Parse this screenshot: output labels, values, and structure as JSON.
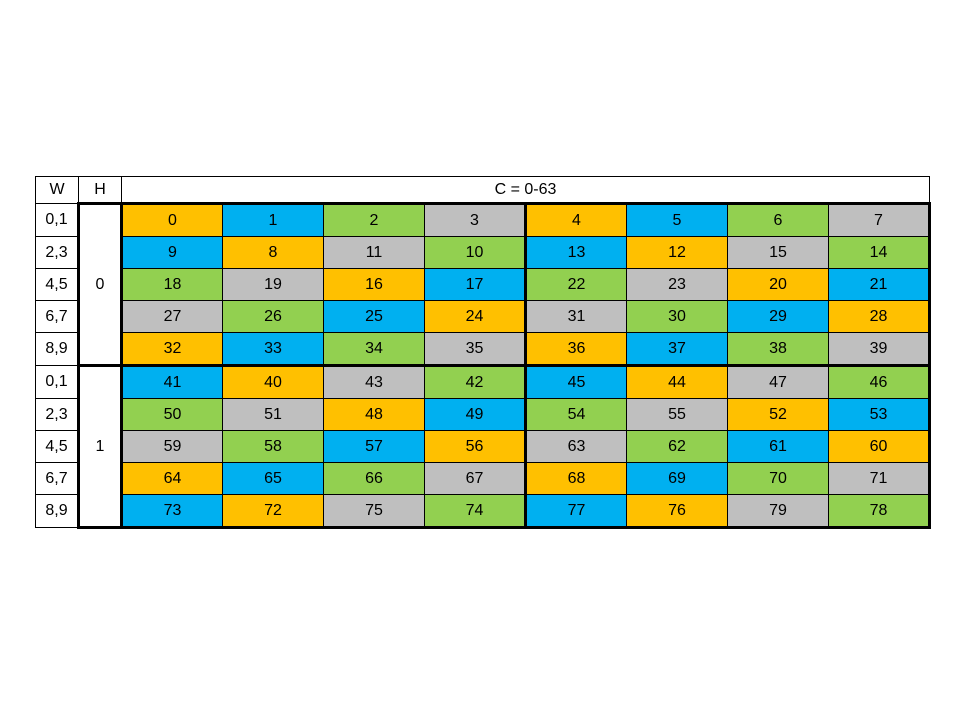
{
  "page": {
    "background": "#ffffff"
  },
  "table": {
    "headers": {
      "w": "W",
      "h": "H",
      "c": "C = 0-63"
    },
    "palette": {
      "orange": "#FFC000",
      "blue": "#00B0F0",
      "green": "#92D050",
      "gray": "#BFBFBF"
    },
    "border_color": "#000000",
    "blocks": [
      {
        "h_label": "0",
        "rows": [
          {
            "w_label": "0,1",
            "cells": [
              {
                "v": "0",
                "c": "orange"
              },
              {
                "v": "1",
                "c": "blue"
              },
              {
                "v": "2",
                "c": "green"
              },
              {
                "v": "3",
                "c": "gray"
              },
              {
                "v": "4",
                "c": "orange"
              },
              {
                "v": "5",
                "c": "blue"
              },
              {
                "v": "6",
                "c": "green"
              },
              {
                "v": "7",
                "c": "gray"
              }
            ]
          },
          {
            "w_label": "2,3",
            "cells": [
              {
                "v": "9",
                "c": "blue"
              },
              {
                "v": "8",
                "c": "orange"
              },
              {
                "v": "11",
                "c": "gray"
              },
              {
                "v": "10",
                "c": "green"
              },
              {
                "v": "13",
                "c": "blue"
              },
              {
                "v": "12",
                "c": "orange"
              },
              {
                "v": "15",
                "c": "gray"
              },
              {
                "v": "14",
                "c": "green"
              }
            ]
          },
          {
            "w_label": "4,5",
            "cells": [
              {
                "v": "18",
                "c": "green"
              },
              {
                "v": "19",
                "c": "gray"
              },
              {
                "v": "16",
                "c": "orange"
              },
              {
                "v": "17",
                "c": "blue"
              },
              {
                "v": "22",
                "c": "green"
              },
              {
                "v": "23",
                "c": "gray"
              },
              {
                "v": "20",
                "c": "orange"
              },
              {
                "v": "21",
                "c": "blue"
              }
            ]
          },
          {
            "w_label": "6,7",
            "cells": [
              {
                "v": "27",
                "c": "gray"
              },
              {
                "v": "26",
                "c": "green"
              },
              {
                "v": "25",
                "c": "blue"
              },
              {
                "v": "24",
                "c": "orange"
              },
              {
                "v": "31",
                "c": "gray"
              },
              {
                "v": "30",
                "c": "green"
              },
              {
                "v": "29",
                "c": "blue"
              },
              {
                "v": "28",
                "c": "orange"
              }
            ]
          },
          {
            "w_label": "8,9",
            "cells": [
              {
                "v": "32",
                "c": "orange"
              },
              {
                "v": "33",
                "c": "blue"
              },
              {
                "v": "34",
                "c": "green"
              },
              {
                "v": "35",
                "c": "gray"
              },
              {
                "v": "36",
                "c": "orange"
              },
              {
                "v": "37",
                "c": "blue"
              },
              {
                "v": "38",
                "c": "green"
              },
              {
                "v": "39",
                "c": "gray"
              }
            ]
          }
        ]
      },
      {
        "h_label": "1",
        "rows": [
          {
            "w_label": "0,1",
            "cells": [
              {
                "v": "41",
                "c": "blue"
              },
              {
                "v": "40",
                "c": "orange"
              },
              {
                "v": "43",
                "c": "gray"
              },
              {
                "v": "42",
                "c": "green"
              },
              {
                "v": "45",
                "c": "blue"
              },
              {
                "v": "44",
                "c": "orange"
              },
              {
                "v": "47",
                "c": "gray"
              },
              {
                "v": "46",
                "c": "green"
              }
            ]
          },
          {
            "w_label": "2,3",
            "cells": [
              {
                "v": "50",
                "c": "green"
              },
              {
                "v": "51",
                "c": "gray"
              },
              {
                "v": "48",
                "c": "orange"
              },
              {
                "v": "49",
                "c": "blue"
              },
              {
                "v": "54",
                "c": "green"
              },
              {
                "v": "55",
                "c": "gray"
              },
              {
                "v": "52",
                "c": "orange"
              },
              {
                "v": "53",
                "c": "blue"
              }
            ]
          },
          {
            "w_label": "4,5",
            "cells": [
              {
                "v": "59",
                "c": "gray"
              },
              {
                "v": "58",
                "c": "green"
              },
              {
                "v": "57",
                "c": "blue"
              },
              {
                "v": "56",
                "c": "orange"
              },
              {
                "v": "63",
                "c": "gray"
              },
              {
                "v": "62",
                "c": "green"
              },
              {
                "v": "61",
                "c": "blue"
              },
              {
                "v": "60",
                "c": "orange"
              }
            ]
          },
          {
            "w_label": "6,7",
            "cells": [
              {
                "v": "64",
                "c": "orange"
              },
              {
                "v": "65",
                "c": "blue"
              },
              {
                "v": "66",
                "c": "green"
              },
              {
                "v": "67",
                "c": "gray"
              },
              {
                "v": "68",
                "c": "orange"
              },
              {
                "v": "69",
                "c": "blue"
              },
              {
                "v": "70",
                "c": "green"
              },
              {
                "v": "71",
                "c": "gray"
              }
            ]
          },
          {
            "w_label": "8,9",
            "cells": [
              {
                "v": "73",
                "c": "blue"
              },
              {
                "v": "72",
                "c": "orange"
              },
              {
                "v": "75",
                "c": "gray"
              },
              {
                "v": "74",
                "c": "green"
              },
              {
                "v": "77",
                "c": "blue"
              },
              {
                "v": "76",
                "c": "orange"
              },
              {
                "v": "79",
                "c": "gray"
              },
              {
                "v": "78",
                "c": "green"
              }
            ]
          }
        ]
      }
    ]
  }
}
